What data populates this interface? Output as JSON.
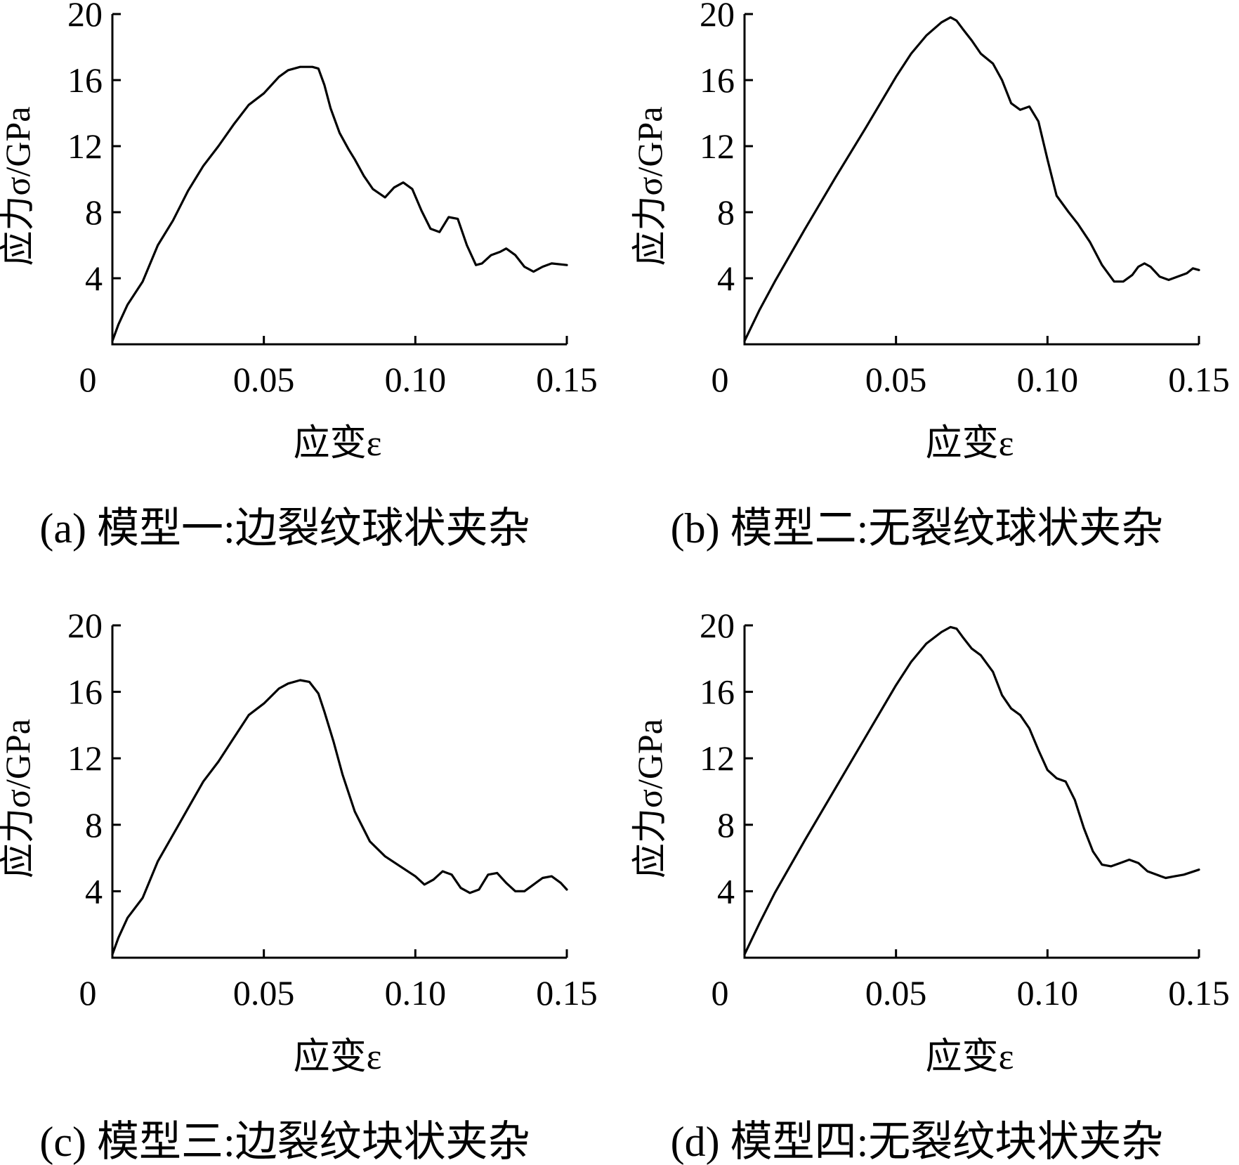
{
  "chart_data": [
    {
      "type": "line",
      "caption": "(a) 模型一:边裂纹球状夹杂",
      "xlabel": "应变ε",
      "ylabel": "应力σ/GPa",
      "xlim": [
        0,
        0.15
      ],
      "ylim": [
        0,
        20
      ],
      "xticks": [
        0,
        0.05,
        0.1,
        0.15
      ],
      "xtick_labels": [
        "0",
        "0.05",
        "0.10",
        "0.15"
      ],
      "yticks": [
        4,
        8,
        12,
        16,
        20
      ],
      "ytick_labels": [
        "4",
        "8",
        "12",
        "16",
        "20"
      ],
      "grid": false,
      "series": [
        {
          "x": [
            0,
            0.002,
            0.005,
            0.01,
            0.015,
            0.02,
            0.025,
            0.03,
            0.035,
            0.04,
            0.045,
            0.05,
            0.055,
            0.058,
            0.062,
            0.066,
            0.068,
            0.07,
            0.072,
            0.075,
            0.078,
            0.08,
            0.083,
            0.086,
            0.09,
            0.093,
            0.096,
            0.099,
            0.102,
            0.105,
            0.108,
            0.111,
            0.114,
            0.117,
            0.12,
            0.122,
            0.125,
            0.128,
            0.13,
            0.133,
            0.136,
            0.139,
            0.142,
            0.145,
            0.15
          ],
          "y": [
            0.2,
            1.2,
            2.4,
            3.8,
            6.0,
            7.5,
            9.3,
            10.8,
            12.0,
            13.3,
            14.5,
            15.2,
            16.2,
            16.6,
            16.8,
            16.8,
            16.7,
            15.7,
            14.3,
            12.8,
            11.8,
            11.2,
            10.2,
            9.4,
            8.9,
            9.5,
            9.8,
            9.4,
            8.1,
            7.0,
            6.8,
            7.7,
            7.6,
            6.0,
            4.8,
            4.9,
            5.4,
            5.6,
            5.8,
            5.4,
            4.7,
            4.4,
            4.7,
            4.9,
            4.8
          ]
        }
      ]
    },
    {
      "type": "line",
      "caption": "(b) 模型二:无裂纹球状夹杂",
      "xlabel": "应变ε",
      "ylabel": "应力σ/GPa",
      "xlim": [
        0,
        0.15
      ],
      "ylim": [
        0,
        20
      ],
      "xticks": [
        0,
        0.05,
        0.1,
        0.15
      ],
      "xtick_labels": [
        "0",
        "0.05",
        "0.10",
        "0.15"
      ],
      "yticks": [
        4,
        8,
        12,
        16,
        20
      ],
      "ytick_labels": [
        "4",
        "8",
        "12",
        "16",
        "20"
      ],
      "grid": false,
      "series": [
        {
          "x": [
            0,
            0.005,
            0.01,
            0.02,
            0.03,
            0.04,
            0.05,
            0.055,
            0.06,
            0.065,
            0.068,
            0.07,
            0.072,
            0.075,
            0.078,
            0.082,
            0.085,
            0.088,
            0.091,
            0.094,
            0.097,
            0.1,
            0.103,
            0.107,
            0.11,
            0.114,
            0.118,
            0.122,
            0.125,
            0.128,
            0.13,
            0.132,
            0.134,
            0.137,
            0.14,
            0.143,
            0.146,
            0.148,
            0.15
          ],
          "y": [
            0.2,
            2.1,
            3.8,
            7.0,
            10.1,
            13.1,
            16.2,
            17.6,
            18.7,
            19.5,
            19.8,
            19.6,
            19.1,
            18.4,
            17.6,
            17.0,
            16.0,
            14.6,
            14.2,
            14.4,
            13.5,
            11.2,
            9.0,
            8.0,
            7.3,
            6.2,
            4.8,
            3.8,
            3.8,
            4.2,
            4.7,
            4.9,
            4.7,
            4.1,
            3.9,
            4.1,
            4.3,
            4.6,
            4.5
          ]
        }
      ]
    },
    {
      "type": "line",
      "caption": "(c) 模型三:边裂纹块状夹杂",
      "xlabel": "应变ε",
      "ylabel": "应力σ/GPa",
      "xlim": [
        0,
        0.15
      ],
      "ylim": [
        0,
        20
      ],
      "xticks": [
        0,
        0.05,
        0.1,
        0.15
      ],
      "xtick_labels": [
        "0",
        "0.05",
        "0.10",
        "0.15"
      ],
      "yticks": [
        4,
        8,
        12,
        16,
        20
      ],
      "ytick_labels": [
        "4",
        "8",
        "12",
        "16",
        "20"
      ],
      "grid": false,
      "series": [
        {
          "x": [
            0,
            0.002,
            0.005,
            0.01,
            0.015,
            0.02,
            0.025,
            0.03,
            0.035,
            0.04,
            0.045,
            0.05,
            0.055,
            0.058,
            0.062,
            0.065,
            0.068,
            0.07,
            0.073,
            0.076,
            0.08,
            0.085,
            0.09,
            0.095,
            0.1,
            0.103,
            0.106,
            0.109,
            0.112,
            0.115,
            0.118,
            0.121,
            0.124,
            0.127,
            0.13,
            0.133,
            0.136,
            0.139,
            0.142,
            0.145,
            0.148,
            0.15
          ],
          "y": [
            0.2,
            1.2,
            2.4,
            3.6,
            5.8,
            7.4,
            9.0,
            10.6,
            11.8,
            13.2,
            14.6,
            15.3,
            16.2,
            16.5,
            16.7,
            16.6,
            15.9,
            14.8,
            13.0,
            11.0,
            8.8,
            7.0,
            6.1,
            5.5,
            4.9,
            4.4,
            4.7,
            5.2,
            5.0,
            4.2,
            3.9,
            4.1,
            5.0,
            5.1,
            4.5,
            4.0,
            4.0,
            4.4,
            4.8,
            4.9,
            4.5,
            4.1
          ]
        }
      ]
    },
    {
      "type": "line",
      "caption": "(d) 模型四:无裂纹块状夹杂",
      "xlabel": "应变ε",
      "ylabel": "应力σ/GPa",
      "xlim": [
        0,
        0.15
      ],
      "ylim": [
        0,
        20
      ],
      "xticks": [
        0,
        0.05,
        0.1,
        0.15
      ],
      "xtick_labels": [
        "0",
        "0.05",
        "0.10",
        "0.15"
      ],
      "yticks": [
        4,
        8,
        12,
        16,
        20
      ],
      "ytick_labels": [
        "4",
        "8",
        "12",
        "16",
        "20"
      ],
      "grid": false,
      "series": [
        {
          "x": [
            0,
            0.005,
            0.01,
            0.02,
            0.03,
            0.04,
            0.05,
            0.055,
            0.06,
            0.065,
            0.068,
            0.07,
            0.072,
            0.075,
            0.078,
            0.082,
            0.085,
            0.088,
            0.091,
            0.094,
            0.097,
            0.1,
            0.103,
            0.106,
            0.109,
            0.112,
            0.115,
            0.118,
            0.121,
            0.124,
            0.127,
            0.13,
            0.133,
            0.136,
            0.139,
            0.142,
            0.145,
            0.15
          ],
          "y": [
            0.2,
            2.1,
            3.9,
            7.1,
            10.2,
            13.3,
            16.4,
            17.8,
            18.9,
            19.6,
            19.9,
            19.8,
            19.3,
            18.6,
            18.2,
            17.2,
            15.8,
            15.0,
            14.6,
            13.8,
            12.5,
            11.3,
            10.8,
            10.6,
            9.5,
            7.8,
            6.4,
            5.6,
            5.5,
            5.7,
            5.9,
            5.7,
            5.2,
            5.0,
            4.8,
            4.9,
            5.0,
            5.3
          ]
        }
      ]
    }
  ]
}
